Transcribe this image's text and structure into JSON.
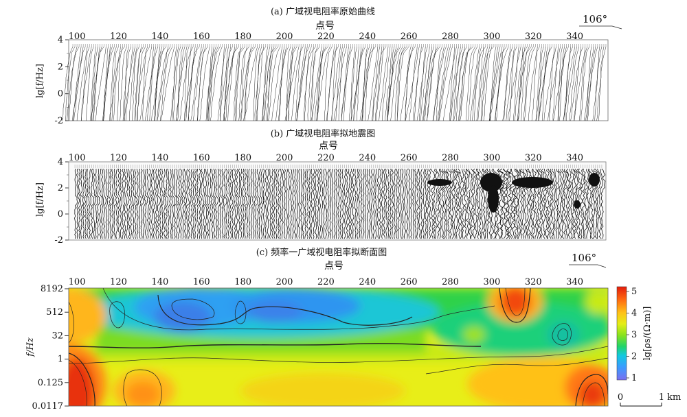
{
  "panels": {
    "a": {
      "title": "(a) 广域视电阻率原始曲线",
      "xlabel": "点号",
      "ylabel": "lg[f/Hz]",
      "direction": "106°"
    },
    "b": {
      "title": "(b) 广域视电阻率拟地震图",
      "xlabel": "点号",
      "ylabel": "lg[f/Hz]"
    },
    "c": {
      "title": "(c) 频率一广域视电阻率拟断面图",
      "xlabel": "点号",
      "ylabel": "f/Hz",
      "direction": "106°"
    }
  },
  "colorbar": {
    "label": "lg[ρs/(Ω·m)]",
    "ticks": [
      "1",
      "2",
      "3",
      "4",
      "5"
    ],
    "colors": [
      "#7b6ff0",
      "#3a9cff",
      "#12c8e0",
      "#22d46a",
      "#88e21e",
      "#e4ee16",
      "#ffc217",
      "#ff6a10",
      "#e31d0c"
    ]
  },
  "scale_bar": {
    "start": "0",
    "end": "1 km"
  },
  "chart_data": [
    {
      "type": "line",
      "title": "(a) 广域视电阻率原始曲线",
      "xlabel": "点号",
      "ylabel": "lg[f/Hz]",
      "x_ticks": [
        100,
        120,
        140,
        160,
        180,
        200,
        220,
        240,
        260,
        280,
        300,
        320,
        340
      ],
      "y_ticks": [
        4,
        2,
        0,
        -2
      ],
      "xlim": [
        96,
        356
      ],
      "ylim": [
        -2,
        4
      ],
      "grid": false
    },
    {
      "type": "area",
      "title": "(b) 广域视电阻率拟地震图",
      "xlabel": "点号",
      "ylabel": "lg[f/Hz]",
      "x_ticks": [
        100,
        120,
        140,
        160,
        180,
        200,
        220,
        240,
        260,
        280,
        300,
        320,
        340
      ],
      "y_ticks": [
        4,
        2,
        0,
        -2
      ],
      "xlim": [
        96,
        356
      ],
      "ylim": [
        -2,
        4
      ],
      "grid": false
    },
    {
      "type": "heatmap",
      "title": "(c) 频率一广域视电阻率拟断面图",
      "xlabel": "点号",
      "ylabel": "f/Hz",
      "x_ticks": [
        100,
        120,
        140,
        160,
        180,
        200,
        220,
        240,
        260,
        280,
        300,
        320,
        340
      ],
      "y_ticks": [
        "8192",
        "512",
        "32",
        "1",
        "0.125",
        "0.0117"
      ],
      "xlim": [
        96,
        356
      ],
      "colorbar_range": [
        1,
        5
      ],
      "anomalies": [
        {
          "point": 102,
          "band": "0.0117–1",
          "lg_rho": 4.9
        },
        {
          "point": 103,
          "band": "512–8192",
          "lg_rho": 4.0
        },
        {
          "point": 130,
          "band": "0.0117–1",
          "lg_rho": 4.2
        },
        {
          "point": 163,
          "band": "32–512",
          "lg_rho": 1.4
        },
        {
          "point": 210,
          "band": "32–8192",
          "lg_rho": 1.6
        },
        {
          "point": 315,
          "band": "512–8192",
          "lg_rho": 4.7
        },
        {
          "point": 339,
          "band": "1–32",
          "lg_rho": 2.3
        },
        {
          "point": 350,
          "band": "0.0117–1",
          "lg_rho": 4.6
        }
      ]
    }
  ]
}
